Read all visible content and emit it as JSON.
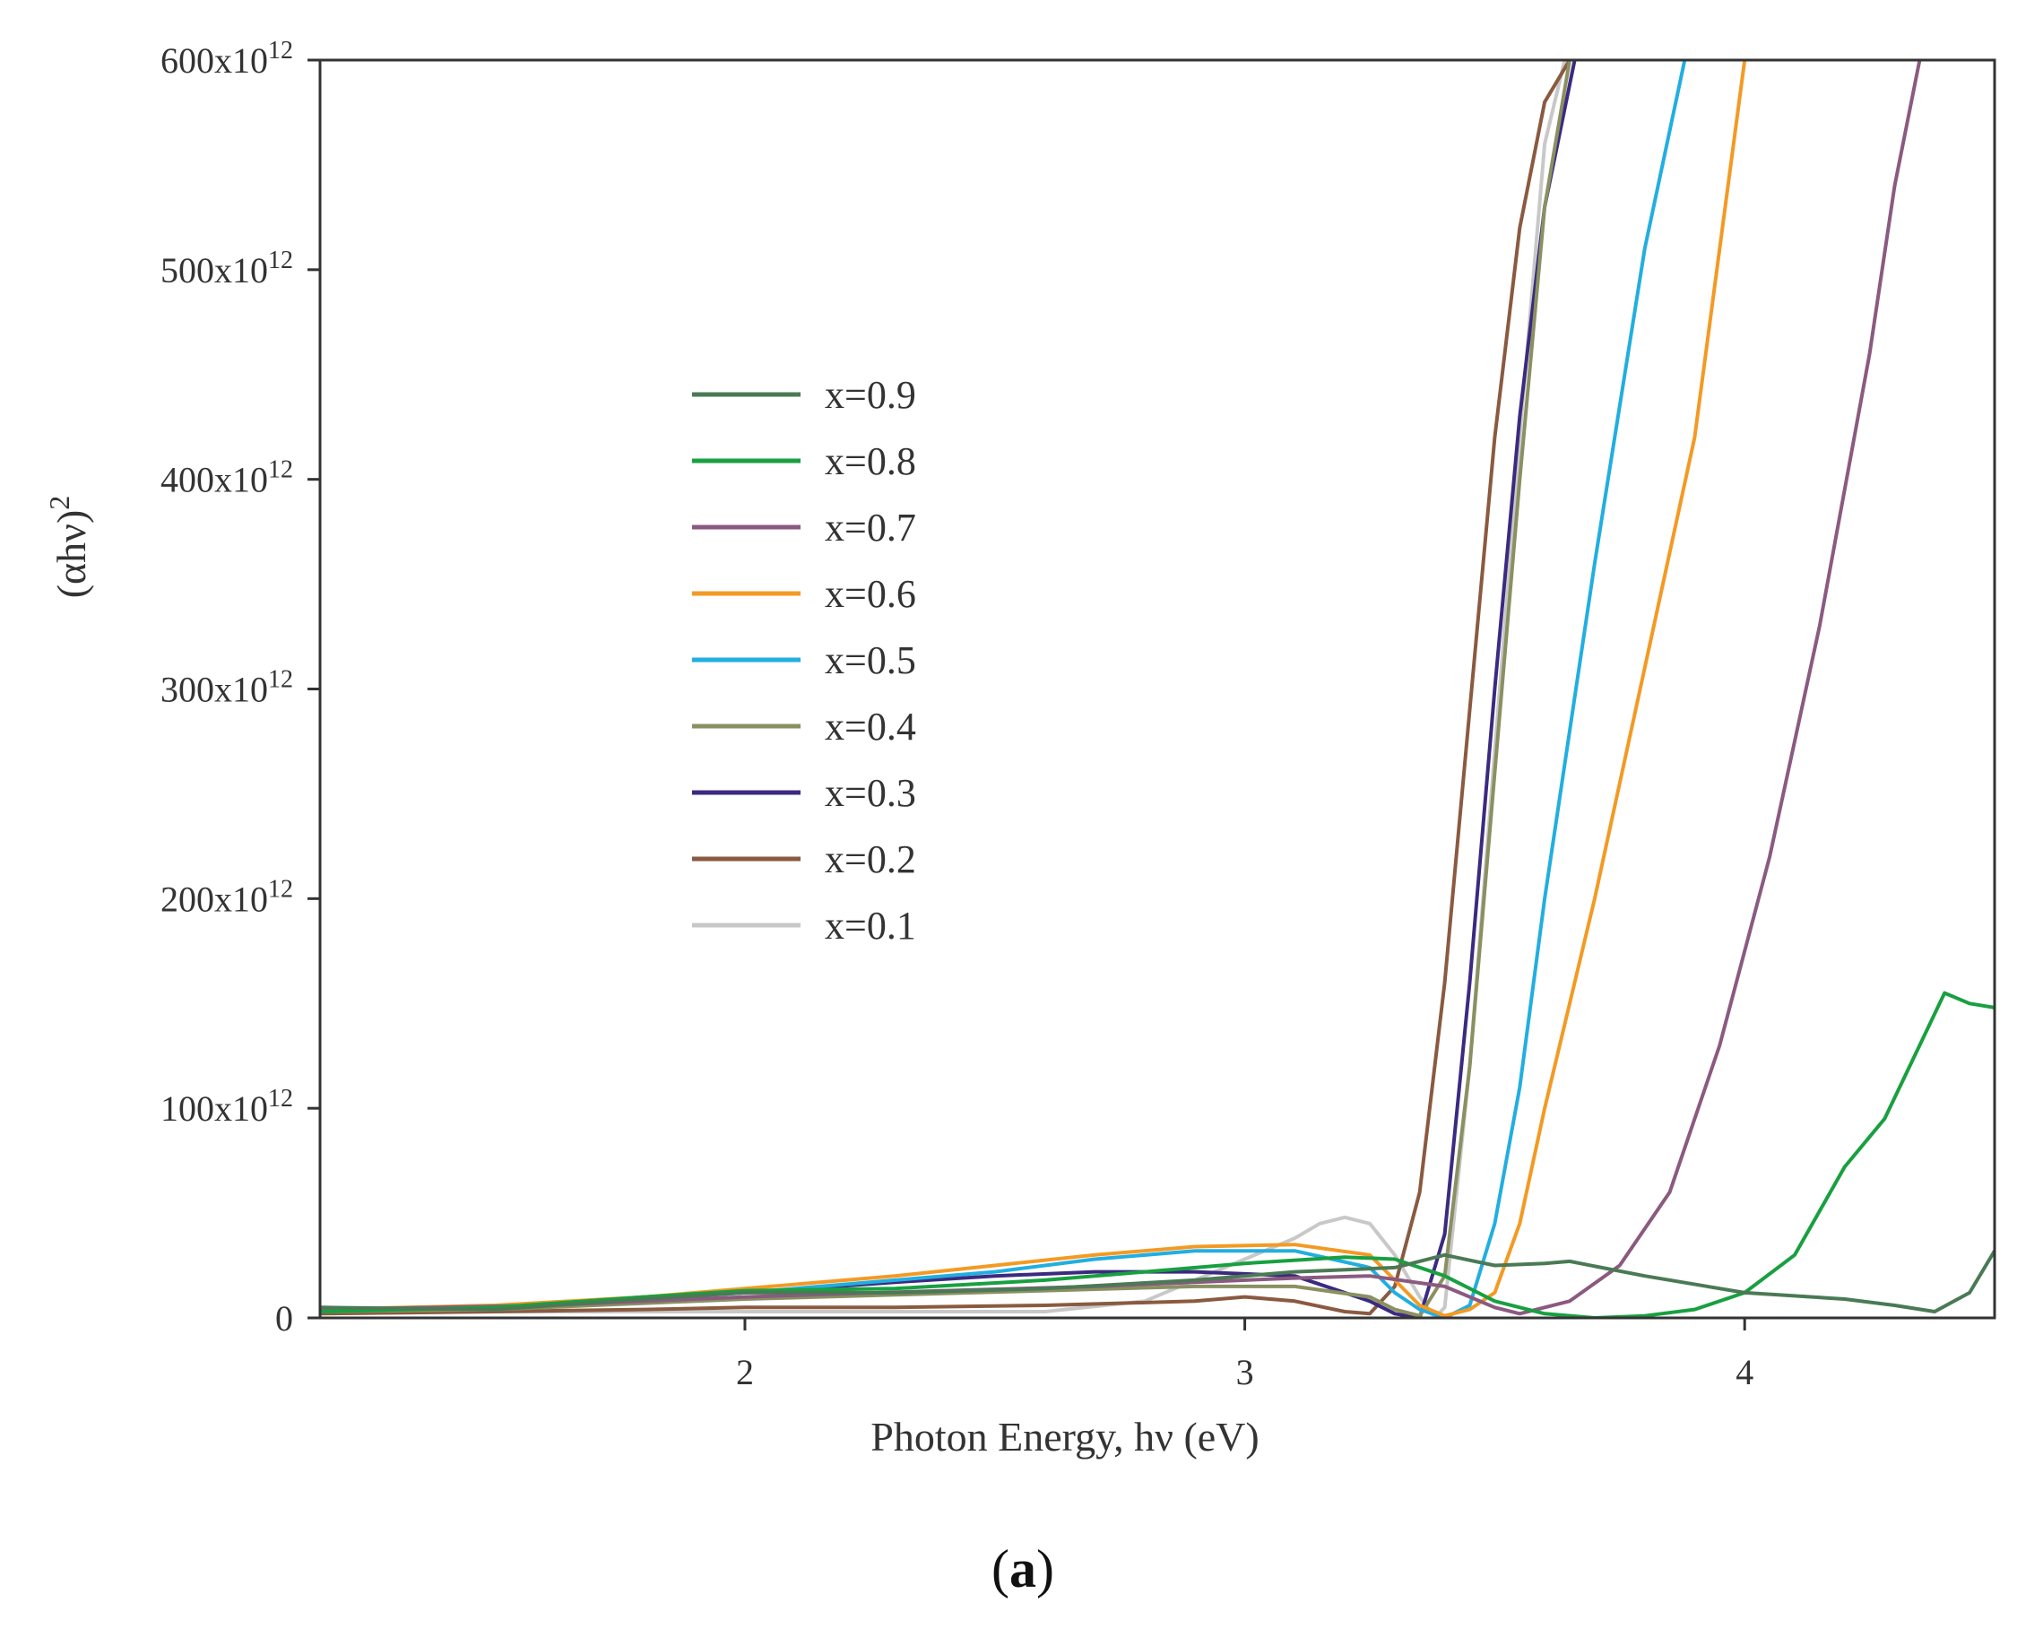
{
  "chart_data": {
    "type": "line",
    "xlabel": "Photon Energy, hν (eV)",
    "ylabel_base": "(αhν)",
    "ylabel_exp": "2",
    "panel_label_parts": [
      "(",
      "a",
      ")"
    ],
    "xlim": [
      1.15,
      4.5
    ],
    "ylim": [
      0,
      600
    ],
    "x_ticks": [
      {
        "value": 2,
        "label": "2"
      },
      {
        "value": 3,
        "label": "3"
      },
      {
        "value": 4,
        "label": "4"
      }
    ],
    "y_ticks": [
      {
        "value": 0,
        "label": "0"
      },
      {
        "value": 100,
        "base": "100x10",
        "exp": "12"
      },
      {
        "value": 200,
        "base": "200x10",
        "exp": "12"
      },
      {
        "value": 300,
        "base": "300x10",
        "exp": "12"
      },
      {
        "value": 400,
        "base": "400x10",
        "exp": "12"
      },
      {
        "value": 500,
        "base": "500x10",
        "exp": "12"
      },
      {
        "value": 600,
        "base": "600x10",
        "exp": "12"
      }
    ],
    "y_unit_note": "y values in units of 10^12",
    "series": [
      {
        "name": "x=0.9",
        "color": "#4a7a55",
        "x": [
          1.15,
          1.5,
          1.8,
          2.0,
          2.3,
          2.6,
          2.9,
          3.1,
          3.3,
          3.4,
          3.5,
          3.6,
          3.65,
          3.8,
          4.0,
          4.2,
          4.3,
          4.38,
          4.45,
          4.5
        ],
        "y": [
          5,
          4,
          9,
          12,
          12,
          14,
          18,
          22,
          24,
          30,
          25,
          26,
          27,
          20,
          12,
          9,
          6,
          3,
          12,
          32
        ]
      },
      {
        "name": "x=0.8",
        "color": "#18a040",
        "x": [
          1.15,
          1.5,
          1.8,
          2.0,
          2.3,
          2.6,
          2.8,
          3.0,
          3.2,
          3.3,
          3.4,
          3.5,
          3.6,
          3.7,
          3.8,
          3.9,
          4.0,
          4.1,
          4.2,
          4.28,
          4.35,
          4.4,
          4.45,
          4.5
        ],
        "y": [
          3,
          5,
          10,
          13,
          14,
          18,
          22,
          26,
          29,
          28,
          20,
          8,
          2,
          0,
          1,
          4,
          12,
          30,
          72,
          95,
          130,
          155,
          150,
          148
        ]
      },
      {
        "name": "x=0.7",
        "color": "#8b5a80",
        "x": [
          1.15,
          1.6,
          2.0,
          2.4,
          2.7,
          2.9,
          3.1,
          3.25,
          3.4,
          3.5,
          3.55,
          3.65,
          3.75,
          3.85,
          3.95,
          4.05,
          4.15,
          4.25,
          4.3,
          4.35
        ],
        "y": [
          4,
          6,
          10,
          13,
          15,
          17,
          19,
          20,
          15,
          5,
          2,
          8,
          25,
          60,
          130,
          220,
          330,
          460,
          540,
          600
        ]
      },
      {
        "name": "x=0.6",
        "color": "#f39a24",
        "x": [
          1.15,
          1.5,
          1.8,
          2.0,
          2.3,
          2.5,
          2.7,
          2.9,
          3.1,
          3.25,
          3.3,
          3.35,
          3.4,
          3.45,
          3.5,
          3.55,
          3.6,
          3.7,
          3.8,
          3.9,
          3.95,
          4.0
        ],
        "y": [
          4,
          6,
          10,
          14,
          20,
          25,
          30,
          34,
          35,
          30,
          18,
          6,
          1,
          4,
          12,
          45,
          100,
          200,
          310,
          420,
          510,
          600
        ]
      },
      {
        "name": "x=0.5",
        "color": "#22aee0",
        "x": [
          1.15,
          1.5,
          1.8,
          2.0,
          2.3,
          2.5,
          2.7,
          2.9,
          3.1,
          3.25,
          3.3,
          3.35,
          3.4,
          3.45,
          3.5,
          3.55,
          3.6,
          3.7,
          3.8,
          3.88
        ],
        "y": [
          4,
          5,
          9,
          12,
          18,
          22,
          28,
          32,
          32,
          24,
          12,
          4,
          0,
          6,
          45,
          110,
          200,
          360,
          510,
          600
        ]
      },
      {
        "name": "x=0.4",
        "color": "#8a9060",
        "x": [
          1.15,
          1.5,
          1.8,
          2.0,
          2.3,
          2.6,
          2.9,
          3.1,
          3.25,
          3.3,
          3.35,
          3.4,
          3.45,
          3.5,
          3.55,
          3.6,
          3.65
        ],
        "y": [
          3,
          4,
          7,
          9,
          11,
          13,
          15,
          15,
          10,
          4,
          1,
          20,
          120,
          260,
          400,
          530,
          600
        ]
      },
      {
        "name": "x=0.3",
        "color": "#3b2a80",
        "x": [
          1.15,
          1.5,
          1.8,
          2.0,
          2.3,
          2.5,
          2.7,
          2.9,
          3.1,
          3.25,
          3.3,
          3.35,
          3.4,
          3.45,
          3.5,
          3.55,
          3.6,
          3.66
        ],
        "y": [
          4,
          5,
          10,
          12,
          17,
          20,
          22,
          22,
          20,
          8,
          2,
          0,
          40,
          160,
          300,
          430,
          530,
          600
        ]
      },
      {
        "name": "x=0.2",
        "color": "#8a5a40",
        "x": [
          1.15,
          1.5,
          1.8,
          2.0,
          2.3,
          2.6,
          2.9,
          3.0,
          3.1,
          3.2,
          3.25,
          3.3,
          3.35,
          3.4,
          3.45,
          3.5,
          3.55,
          3.6,
          3.65
        ],
        "y": [
          2,
          3,
          4,
          5,
          5,
          6,
          8,
          10,
          8,
          3,
          2,
          15,
          60,
          160,
          290,
          420,
          520,
          580,
          600
        ]
      },
      {
        "name": "x=0.1",
        "color": "#c8c8c8",
        "x": [
          1.15,
          1.5,
          1.8,
          2.0,
          2.3,
          2.6,
          2.8,
          3.0,
          3.1,
          3.15,
          3.2,
          3.25,
          3.3,
          3.35,
          3.38,
          3.4,
          3.45,
          3.5,
          3.55,
          3.6,
          3.64
        ],
        "y": [
          2,
          3,
          3,
          3,
          3,
          3,
          8,
          28,
          38,
          45,
          48,
          45,
          30,
          10,
          0,
          5,
          120,
          270,
          420,
          560,
          600
        ]
      }
    ]
  }
}
